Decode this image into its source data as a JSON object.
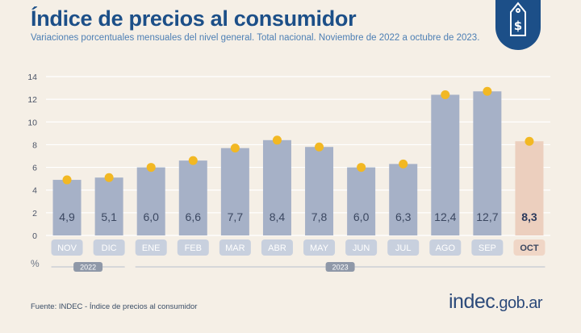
{
  "header": {
    "title": "Índice de precios al consumidor",
    "subtitle": "Variaciones porcentuales mensuales del nivel general. Total nacional. Noviembre de 2022 a octubre de 2023."
  },
  "badge": {
    "icon": "price-tag-dollar-icon",
    "symbol": "$",
    "color": "#1c4f88"
  },
  "footer": {
    "source": "Fuente: INDEC - Índice de precios al consumidor",
    "brand_main": "indec",
    "brand_tld": ".gob.ar"
  },
  "colors": {
    "bar": "#a6b1c7",
    "bar_highlight": "#eccfbe",
    "dot": "#f2b823",
    "pill": "#c8d0de",
    "pill_highlight": "#f0d6c6",
    "grid": "#ffffff",
    "axis_text": "#4a5366"
  },
  "chart_data": {
    "type": "bar",
    "categories": [
      "NOV",
      "DIC",
      "ENE",
      "FEB",
      "MAR",
      "ABR",
      "MAY",
      "JUN",
      "JUL",
      "AGO",
      "SEP",
      "OCT"
    ],
    "values": [
      4.9,
      5.1,
      6.0,
      6.6,
      7.7,
      8.4,
      7.8,
      6.0,
      6.3,
      12.4,
      12.7,
      8.3
    ],
    "value_labels": [
      "4,9",
      "5,1",
      "6,0",
      "6,6",
      "7,7",
      "8,4",
      "7,8",
      "6,0",
      "6,3",
      "12,4",
      "12,7",
      "8,3"
    ],
    "highlight_index": 11,
    "ylim": [
      0,
      14
    ],
    "yticks": [
      0,
      2,
      4,
      6,
      8,
      10,
      12,
      14
    ],
    "ylabel": "%",
    "year_groups": [
      {
        "label": "2022",
        "start": 0,
        "end": 1
      },
      {
        "label": "2023",
        "start": 2,
        "end": 11
      }
    ],
    "grid": true
  }
}
